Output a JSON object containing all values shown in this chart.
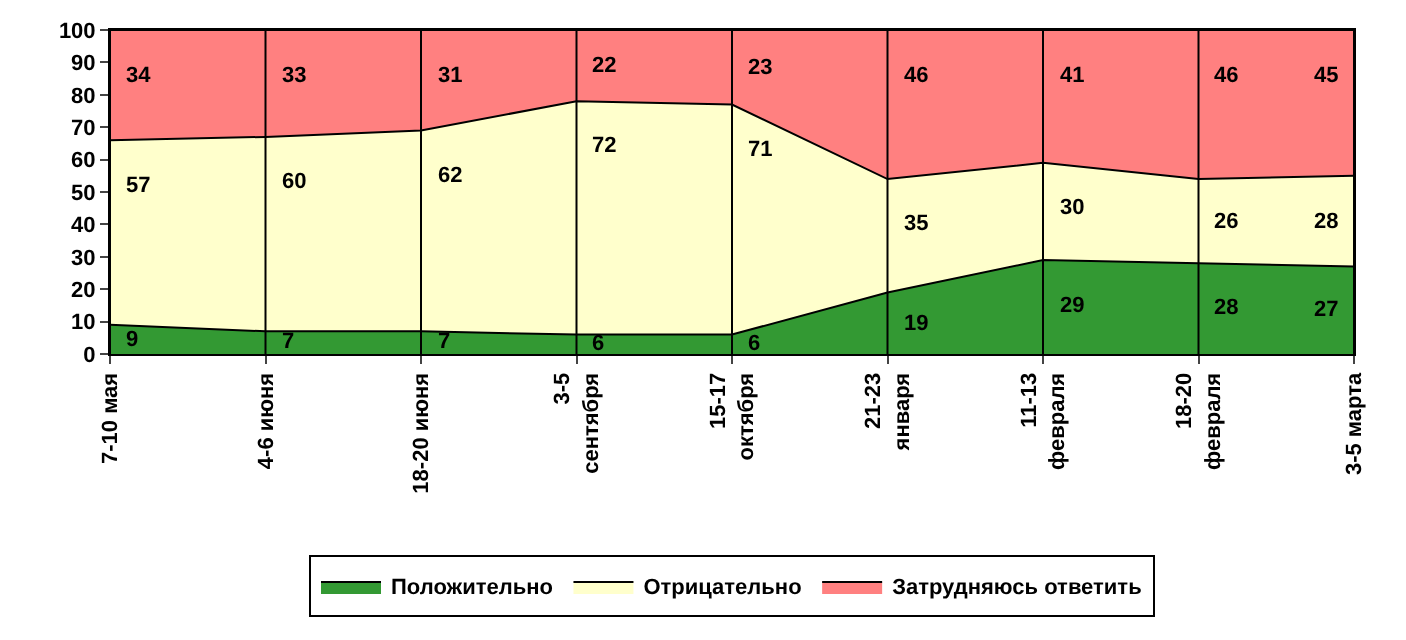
{
  "chart_data": {
    "type": "area",
    "stacked": true,
    "categories": [
      "7-10 мая",
      "4-6 июня",
      "18-20 июня",
      "3-5 сентября",
      "15-17 октября",
      "21-23 января",
      "11-13 февраля",
      "18-20 февраля",
      "3-5 марта"
    ],
    "series": [
      {
        "name": "Положительно",
        "color": "#339933",
        "values": [
          9,
          7,
          7,
          6,
          6,
          19,
          29,
          28,
          27
        ]
      },
      {
        "name": "Отрицательно",
        "color": "#ffffcc",
        "values": [
          57,
          60,
          62,
          72,
          71,
          35,
          30,
          26,
          28
        ]
      },
      {
        "name": "Затрудняюсь ответить",
        "color": "#ff8080",
        "values": [
          34,
          33,
          31,
          22,
          23,
          46,
          41,
          46,
          45
        ]
      }
    ],
    "ylim": [
      0,
      100
    ],
    "yticks": [
      0,
      10,
      20,
      30,
      40,
      50,
      60,
      70,
      80,
      90,
      100
    ],
    "grid": "x",
    "legend": "bottom",
    "data_labels": true
  }
}
